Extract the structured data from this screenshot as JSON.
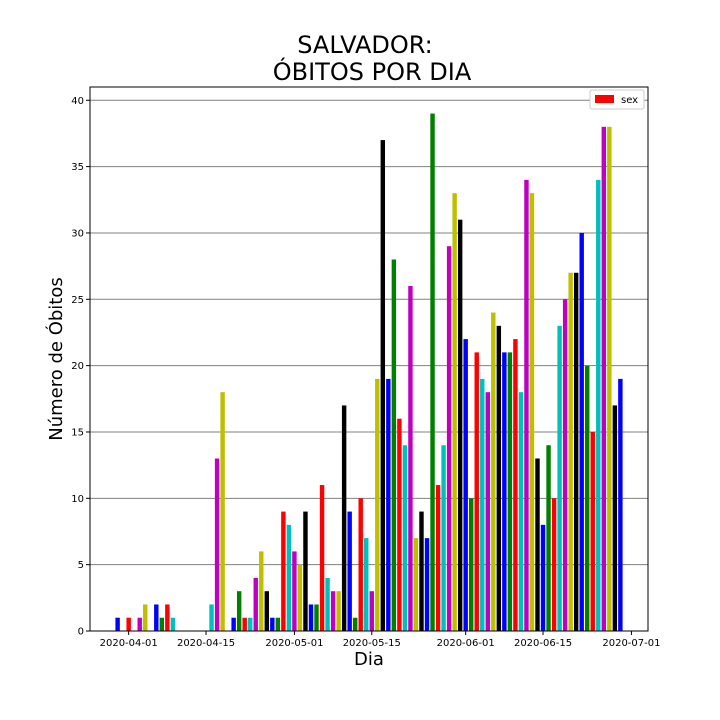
{
  "chart_data": {
    "type": "bar",
    "title_lines": [
      "SALVADOR:",
      "ÓBITOS POR DIA"
    ],
    "xlabel": "Dia",
    "ylabel": "Número de Óbitos",
    "ylim": [
      0,
      41
    ],
    "yticks": [
      0,
      5,
      10,
      15,
      20,
      25,
      30,
      35,
      40
    ],
    "xlim": [
      "2020-03-25",
      "2020-07-04"
    ],
    "xticks": [
      "2020-04-01",
      "2020-04-15",
      "2020-05-01",
      "2020-05-15",
      "2020-06-01",
      "2020-06-15",
      "2020-07-01"
    ],
    "grid": "horizontal",
    "legend": {
      "label": "sex",
      "color": "#ff0000",
      "placement": "top-right"
    },
    "color_cycle": [
      "#0000ff",
      "#008000",
      "#ff0000",
      "#00bfbf",
      "#bf00bf",
      "#bfbf00",
      "#000000"
    ],
    "series": [
      {
        "name": "sex",
        "x": [
          "2020-03-30",
          "2020-03-31",
          "2020-04-01",
          "2020-04-02",
          "2020-04-03",
          "2020-04-04",
          "2020-04-05",
          "2020-04-06",
          "2020-04-07",
          "2020-04-08",
          "2020-04-09",
          "2020-04-10",
          "2020-04-11",
          "2020-04-12",
          "2020-04-13",
          "2020-04-14",
          "2020-04-15",
          "2020-04-16",
          "2020-04-17",
          "2020-04-18",
          "2020-04-19",
          "2020-04-20",
          "2020-04-21",
          "2020-04-22",
          "2020-04-23",
          "2020-04-24",
          "2020-04-25",
          "2020-04-26",
          "2020-04-27",
          "2020-04-28",
          "2020-04-29",
          "2020-04-30",
          "2020-05-01",
          "2020-05-02",
          "2020-05-03",
          "2020-05-04",
          "2020-05-05",
          "2020-05-06",
          "2020-05-07",
          "2020-05-08",
          "2020-05-09",
          "2020-05-10",
          "2020-05-11",
          "2020-05-12",
          "2020-05-13",
          "2020-05-14",
          "2020-05-15",
          "2020-05-16",
          "2020-05-17",
          "2020-05-18",
          "2020-05-19",
          "2020-05-20",
          "2020-05-21",
          "2020-05-22",
          "2020-05-23",
          "2020-05-24",
          "2020-05-25",
          "2020-05-26",
          "2020-05-27",
          "2020-05-28",
          "2020-05-29",
          "2020-05-30",
          "2020-05-31",
          "2020-06-01",
          "2020-06-02",
          "2020-06-03",
          "2020-06-04",
          "2020-06-05",
          "2020-06-06",
          "2020-06-07",
          "2020-06-08",
          "2020-06-09",
          "2020-06-10",
          "2020-06-11",
          "2020-06-12",
          "2020-06-13",
          "2020-06-14",
          "2020-06-15",
          "2020-06-16",
          "2020-06-17",
          "2020-06-18",
          "2020-06-19",
          "2020-06-20",
          "2020-06-21",
          "2020-06-22",
          "2020-06-23",
          "2020-06-24",
          "2020-06-25",
          "2020-06-26",
          "2020-06-27",
          "2020-06-28",
          "2020-06-29"
        ],
        "values": [
          1,
          0,
          1,
          0,
          1,
          2,
          0,
          2,
          1,
          2,
          1,
          0,
          0,
          0,
          0,
          0,
          0,
          2,
          13,
          18,
          0,
          1,
          3,
          1,
          1,
          4,
          6,
          3,
          1,
          1,
          9,
          8,
          6,
          5,
          9,
          2,
          2,
          11,
          4,
          3,
          3,
          17,
          9,
          1,
          10,
          7,
          3,
          19,
          37,
          19,
          28,
          16,
          14,
          26,
          7,
          9,
          7,
          39,
          11,
          14,
          29,
          33,
          31,
          22,
          10,
          21,
          19,
          18,
          24,
          23,
          21,
          21,
          22,
          18,
          34,
          33,
          13,
          8,
          14,
          10,
          23,
          25,
          27,
          27,
          30,
          20,
          15,
          34,
          38,
          38,
          17,
          19
        ]
      }
    ]
  }
}
